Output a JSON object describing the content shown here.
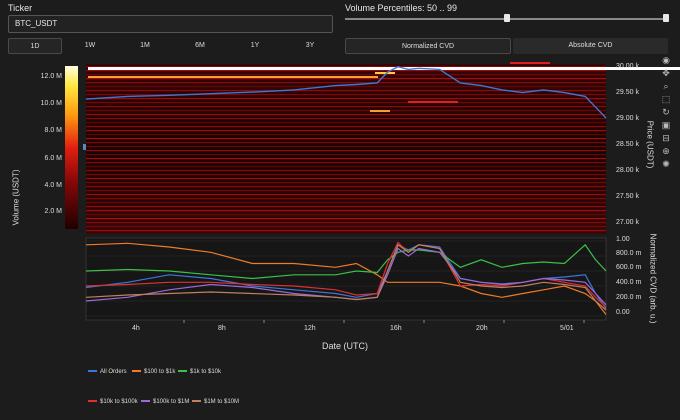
{
  "ticker": {
    "label": "Ticker",
    "value": "BTC_USDT"
  },
  "percentiles": {
    "label": "Volume Percentiles: 50 .. 99",
    "low": 50,
    "high": 99
  },
  "timeframes": [
    "1D",
    "1W",
    "1M",
    "6M",
    "1Y",
    "3Y"
  ],
  "selected_timeframe": "1D",
  "cvd_modes": [
    "Normalized CVD",
    "Absolute CVD"
  ],
  "selected_cvd_mode": "Normalized CVD",
  "toolbar_icons": [
    "color-wheel-icon",
    "pan-icon",
    "zoom-icon",
    "box-zoom-icon",
    "reset-icon",
    "save-icon",
    "hover-icon",
    "crosshair-icon",
    "settings-icon"
  ],
  "colorbar": {
    "title": "Volume (USDT)",
    "ticks": [
      "12.0 M",
      "10.0 M",
      "8.0 M",
      "6.0 M",
      "4.0 M",
      "2.0 M"
    ]
  },
  "price_axis": {
    "title": "Price (USDT)",
    "ticks": [
      "30.00 k",
      "29.50 k",
      "29.00 k",
      "28.50 k",
      "28.00 k",
      "27.50 k",
      "27.00 k"
    ]
  },
  "cvd_axis": {
    "title": "Normalized CVD (arb. u.)",
    "ticks": [
      "1.00",
      "800.0 m",
      "600.0 m",
      "400.0 m",
      "200.0 m",
      "0.00"
    ]
  },
  "x_axis": {
    "title": "Date (UTC)",
    "ticks": [
      "4h",
      "8h",
      "12h",
      "16h",
      "20h",
      "5/01"
    ]
  },
  "legend": [
    {
      "label": "All Orders",
      "color": "#3a78d8"
    },
    {
      "label": "$100 to $1k",
      "color": "#f07a28"
    },
    {
      "label": "$1k to $10k",
      "color": "#3cc048"
    },
    {
      "label": "$10k to $100k",
      "color": "#e03030"
    },
    {
      "label": "$100k to $1M",
      "color": "#9a6ad8"
    },
    {
      "label": "$1M to $10M",
      "color": "#c08060"
    }
  ],
  "chart_data": [
    {
      "type": "line",
      "title": "",
      "xlabel": "Date (UTC)",
      "ylabel": "Price (USDT)",
      "x": [
        0,
        2,
        4,
        6,
        8,
        10,
        12,
        13,
        14,
        14.5,
        15,
        15.5,
        16,
        17,
        18,
        19,
        20,
        21,
        22,
        23,
        24,
        24.5,
        25
      ],
      "series": [
        {
          "name": "All Orders",
          "values": [
            29350,
            29400,
            29420,
            29450,
            29480,
            29520,
            29600,
            29620,
            29650,
            29850,
            29950,
            29900,
            29920,
            29900,
            29650,
            29600,
            29520,
            29470,
            29520,
            29470,
            29400,
            29200,
            29000
          ]
        }
      ],
      "ylim": [
        26850,
        30000
      ]
    },
    {
      "type": "line",
      "title": "",
      "xlabel": "Date (UTC)",
      "ylabel": "Normalized CVD (arb. u.)",
      "x": [
        0,
        2,
        4,
        6,
        8,
        10,
        12,
        13,
        14,
        14.5,
        15,
        15.5,
        16,
        17,
        18,
        19,
        20,
        21,
        22,
        23,
        24,
        24.5,
        25
      ],
      "ylim": [
        0,
        1.0
      ],
      "series": [
        {
          "name": "All Orders",
          "values": [
            0.38,
            0.45,
            0.55,
            0.5,
            0.4,
            0.35,
            0.3,
            0.25,
            0.3,
            0.6,
            0.95,
            0.88,
            0.95,
            0.92,
            0.5,
            0.45,
            0.43,
            0.45,
            0.5,
            0.52,
            0.55,
            0.3,
            0.1
          ]
        },
        {
          "name": "$100 to $1k",
          "values": [
            0.95,
            0.97,
            0.92,
            0.85,
            0.7,
            0.7,
            0.65,
            0.7,
            0.55,
            0.45,
            0.45,
            0.45,
            0.45,
            0.45,
            0.4,
            0.3,
            0.25,
            0.3,
            0.35,
            0.4,
            0.3,
            0.2,
            0.02
          ]
        },
        {
          "name": "$1k to $10k",
          "values": [
            0.6,
            0.62,
            0.6,
            0.55,
            0.5,
            0.55,
            0.55,
            0.6,
            0.58,
            0.75,
            0.85,
            0.88,
            0.88,
            0.85,
            0.65,
            0.75,
            0.65,
            0.7,
            0.72,
            0.7,
            0.95,
            0.75,
            0.6
          ]
        },
        {
          "name": "$10k to $100k",
          "values": [
            0.4,
            0.42,
            0.45,
            0.45,
            0.42,
            0.4,
            0.35,
            0.28,
            0.3,
            0.7,
            0.98,
            0.85,
            0.95,
            0.9,
            0.4,
            0.42,
            0.4,
            0.45,
            0.5,
            0.45,
            0.4,
            0.25,
            0.12
          ]
        },
        {
          "name": "$100k to $1M",
          "values": [
            0.2,
            0.25,
            0.35,
            0.42,
            0.38,
            0.3,
            0.25,
            0.22,
            0.25,
            0.55,
            0.9,
            0.8,
            0.9,
            0.85,
            0.5,
            0.45,
            0.42,
            0.45,
            0.5,
            0.48,
            0.45,
            0.3,
            0.15
          ]
        },
        {
          "name": "$1M to $10M",
          "values": [
            0.25,
            0.28,
            0.3,
            0.32,
            0.3,
            0.28,
            0.25,
            0.22,
            0.25,
            0.6,
            0.95,
            0.85,
            0.95,
            0.9,
            0.45,
            0.4,
            0.38,
            0.4,
            0.45,
            0.42,
            0.38,
            0.2,
            0.08
          ]
        }
      ]
    }
  ]
}
